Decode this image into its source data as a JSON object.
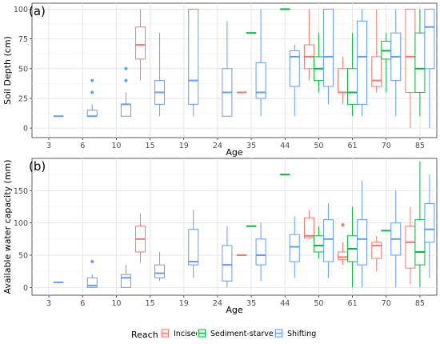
{
  "legend": {
    "title": "Reach",
    "position": "bottom",
    "items": [
      {
        "name": "Incised",
        "color": "#f8766d"
      },
      {
        "name": "Sediment-starved",
        "color": "#00ba38"
      },
      {
        "name": "Shifting",
        "color": "#619cff"
      }
    ]
  },
  "chart_data": [
    {
      "type": "box",
      "panel_label": "(a)",
      "xlabel": "Age",
      "ylabel": "Soil Depth (cm)",
      "ylim": [
        -8,
        105
      ],
      "yticks": [
        0,
        25,
        50,
        75,
        100
      ],
      "grid": true,
      "categories": [
        "3",
        "6",
        "10",
        "15",
        "19",
        "24",
        "35",
        "44",
        "50",
        "61",
        "70",
        "85"
      ],
      "series": [
        {
          "name": "Incised",
          "boxes": [
            {
              "age": "15",
              "min": 40,
              "q1": 58,
              "median": 70,
              "q3": 85,
              "max": 100,
              "outliers": []
            },
            {
              "age": "35",
              "min": 30,
              "q1": 30,
              "median": 30,
              "q3": 30,
              "max": 30,
              "outliers": []
            },
            {
              "age": "50",
              "min": 40,
              "q1": 50,
              "median": 60,
              "q3": 70,
              "max": 100,
              "outliers": []
            },
            {
              "age": "61",
              "min": 20,
              "q1": 30,
              "median": 30,
              "q3": 50,
              "max": 60,
              "outliers": []
            },
            {
              "age": "70",
              "min": 30,
              "q1": 35,
              "median": 40,
              "q3": 60,
              "max": 100,
              "outliers": []
            },
            {
              "age": "85",
              "min": 0,
              "q1": 30,
              "median": 60,
              "q3": 100,
              "max": 100,
              "outliers": []
            }
          ]
        },
        {
          "name": "Sediment-starved",
          "boxes": [
            {
              "age": "35",
              "min": 80,
              "q1": 80,
              "median": 80,
              "q3": 80,
              "max": 80,
              "outliers": []
            },
            {
              "age": "44",
              "min": 100,
              "q1": 100,
              "median": 100,
              "q3": 100,
              "max": 100,
              "outliers": []
            },
            {
              "age": "50",
              "min": 30,
              "q1": 40,
              "median": 50,
              "q3": 60,
              "max": 80,
              "outliers": []
            },
            {
              "age": "61",
              "min": 10,
              "q1": 20,
              "median": 30,
              "q3": 50,
              "max": 80,
              "outliers": []
            },
            {
              "age": "70",
              "min": 30,
              "q1": 58,
              "median": 65,
              "q3": 73,
              "max": 80,
              "outliers": []
            },
            {
              "age": "85",
              "min": 10,
              "q1": 30,
              "median": 50,
              "q3": 80,
              "max": 100,
              "outliers": []
            }
          ]
        },
        {
          "name": "Shifting",
          "boxes": [
            {
              "age": "3",
              "min": 10,
              "q1": 10,
              "median": 10,
              "q3": 10,
              "max": 10,
              "outliers": []
            },
            {
              "age": "6",
              "min": 10,
              "q1": 10,
              "median": 10,
              "q3": 15,
              "max": 20,
              "outliers": [
                30,
                40
              ]
            },
            {
              "age": "10",
              "min": 10,
              "q1": 10,
              "median": 20,
              "q3": 20,
              "max": 30,
              "outliers": [
                40,
                50
              ]
            },
            {
              "age": "15",
              "min": 10,
              "q1": 20,
              "median": 30,
              "q3": 40,
              "max": 80,
              "outliers": []
            },
            {
              "age": "19",
              "min": 10,
              "q1": 20,
              "median": 40,
              "q3": 100,
              "max": 100,
              "outliers": []
            },
            {
              "age": "24",
              "min": 10,
              "q1": 10,
              "median": 30,
              "q3": 50,
              "max": 90,
              "outliers": []
            },
            {
              "age": "35",
              "min": 10,
              "q1": 25,
              "median": 30,
              "q3": 55,
              "max": 100,
              "outliers": []
            },
            {
              "age": "44",
              "min": 10,
              "q1": 35,
              "median": 60,
              "q3": 65,
              "max": 70,
              "outliers": []
            },
            {
              "age": "50",
              "min": 20,
              "q1": 35,
              "median": 60,
              "q3": 100,
              "max": 100,
              "outliers": []
            },
            {
              "age": "61",
              "min": 10,
              "q1": 20,
              "median": 60,
              "q3": 90,
              "max": 100,
              "outliers": []
            },
            {
              "age": "70",
              "min": 10,
              "q1": 40,
              "median": 60,
              "q3": 80,
              "max": 100,
              "outliers": []
            },
            {
              "age": "85",
              "min": 0,
              "q1": 50,
              "median": 85,
              "q3": 100,
              "max": 100,
              "outliers": []
            }
          ]
        }
      ]
    },
    {
      "type": "box",
      "panel_label": "(b)",
      "xlabel": "Age",
      "ylabel": "Available water capacity (mm)",
      "ylim": [
        -12,
        200
      ],
      "yticks": [
        0,
        50,
        100,
        150
      ],
      "grid": true,
      "categories": [
        "3",
        "6",
        "10",
        "15",
        "19",
        "24",
        "35",
        "44",
        "50",
        "61",
        "70",
        "85"
      ],
      "series": [
        {
          "name": "Incised",
          "boxes": [
            {
              "age": "15",
              "min": 38,
              "q1": 55,
              "median": 75,
              "q3": 95,
              "max": 115,
              "outliers": []
            },
            {
              "age": "35",
              "min": 50,
              "q1": 50,
              "median": 50,
              "q3": 50,
              "max": 50,
              "outliers": []
            },
            {
              "age": "50",
              "min": 75,
              "q1": 77,
              "median": 80,
              "q3": 108,
              "max": 120,
              "outliers": []
            },
            {
              "age": "61",
              "min": 35,
              "q1": 43,
              "median": 47,
              "q3": 55,
              "max": 70,
              "outliers": [
                97
              ]
            },
            {
              "age": "70",
              "min": 25,
              "q1": 45,
              "median": 65,
              "q3": 70,
              "max": 80,
              "outliers": []
            },
            {
              "age": "85",
              "min": 5,
              "q1": 30,
              "median": 70,
              "q3": 95,
              "max": 125,
              "outliers": []
            }
          ]
        },
        {
          "name": "Sediment-starved",
          "boxes": [
            {
              "age": "35",
              "min": 95,
              "q1": 95,
              "median": 95,
              "q3": 95,
              "max": 95,
              "outliers": []
            },
            {
              "age": "44",
              "min": 175,
              "q1": 175,
              "median": 175,
              "q3": 175,
              "max": 175,
              "outliers": []
            },
            {
              "age": "50",
              "min": 45,
              "q1": 55,
              "median": 65,
              "q3": 80,
              "max": 95,
              "outliers": []
            },
            {
              "age": "61",
              "min": 0,
              "q1": 40,
              "median": 60,
              "q3": 80,
              "max": 125,
              "outliers": []
            },
            {
              "age": "70",
              "min": 88,
              "q1": 88,
              "median": 88,
              "q3": 88,
              "max": 88,
              "outliers": []
            },
            {
              "age": "85",
              "min": 0,
              "q1": 35,
              "median": 55,
              "q3": 105,
              "max": 195,
              "outliers": []
            }
          ]
        },
        {
          "name": "Shifting",
          "boxes": [
            {
              "age": "3",
              "min": 8,
              "q1": 8,
              "median": 8,
              "q3": 8,
              "max": 8,
              "outliers": []
            },
            {
              "age": "6",
              "min": 0,
              "q1": 0,
              "median": 3,
              "q3": 15,
              "max": 20,
              "outliers": [
                40
              ]
            },
            {
              "age": "10",
              "min": 0,
              "q1": 0,
              "median": 15,
              "q3": 20,
              "max": 35,
              "outliers": []
            },
            {
              "age": "15",
              "min": 10,
              "q1": 15,
              "median": 22,
              "q3": 35,
              "max": 55,
              "outliers": []
            },
            {
              "age": "19",
              "min": 15,
              "q1": 35,
              "median": 40,
              "q3": 90,
              "max": 120,
              "outliers": []
            },
            {
              "age": "24",
              "min": 0,
              "q1": 10,
              "median": 35,
              "q3": 65,
              "max": 95,
              "outliers": []
            },
            {
              "age": "35",
              "min": 10,
              "q1": 35,
              "median": 50,
              "q3": 75,
              "max": 100,
              "outliers": []
            },
            {
              "age": "44",
              "min": 15,
              "q1": 40,
              "median": 63,
              "q3": 82,
              "max": 110,
              "outliers": []
            },
            {
              "age": "50",
              "min": 15,
              "q1": 40,
              "median": 75,
              "q3": 105,
              "max": 130,
              "outliers": []
            },
            {
              "age": "61",
              "min": 0,
              "q1": 35,
              "median": 75,
              "q3": 105,
              "max": 165,
              "outliers": []
            },
            {
              "age": "70",
              "min": 0,
              "q1": 50,
              "median": 75,
              "q3": 100,
              "max": 150,
              "outliers": []
            },
            {
              "age": "85",
              "min": 15,
              "q1": 70,
              "median": 90,
              "q3": 130,
              "max": 175,
              "outliers": []
            }
          ]
        }
      ]
    }
  ]
}
